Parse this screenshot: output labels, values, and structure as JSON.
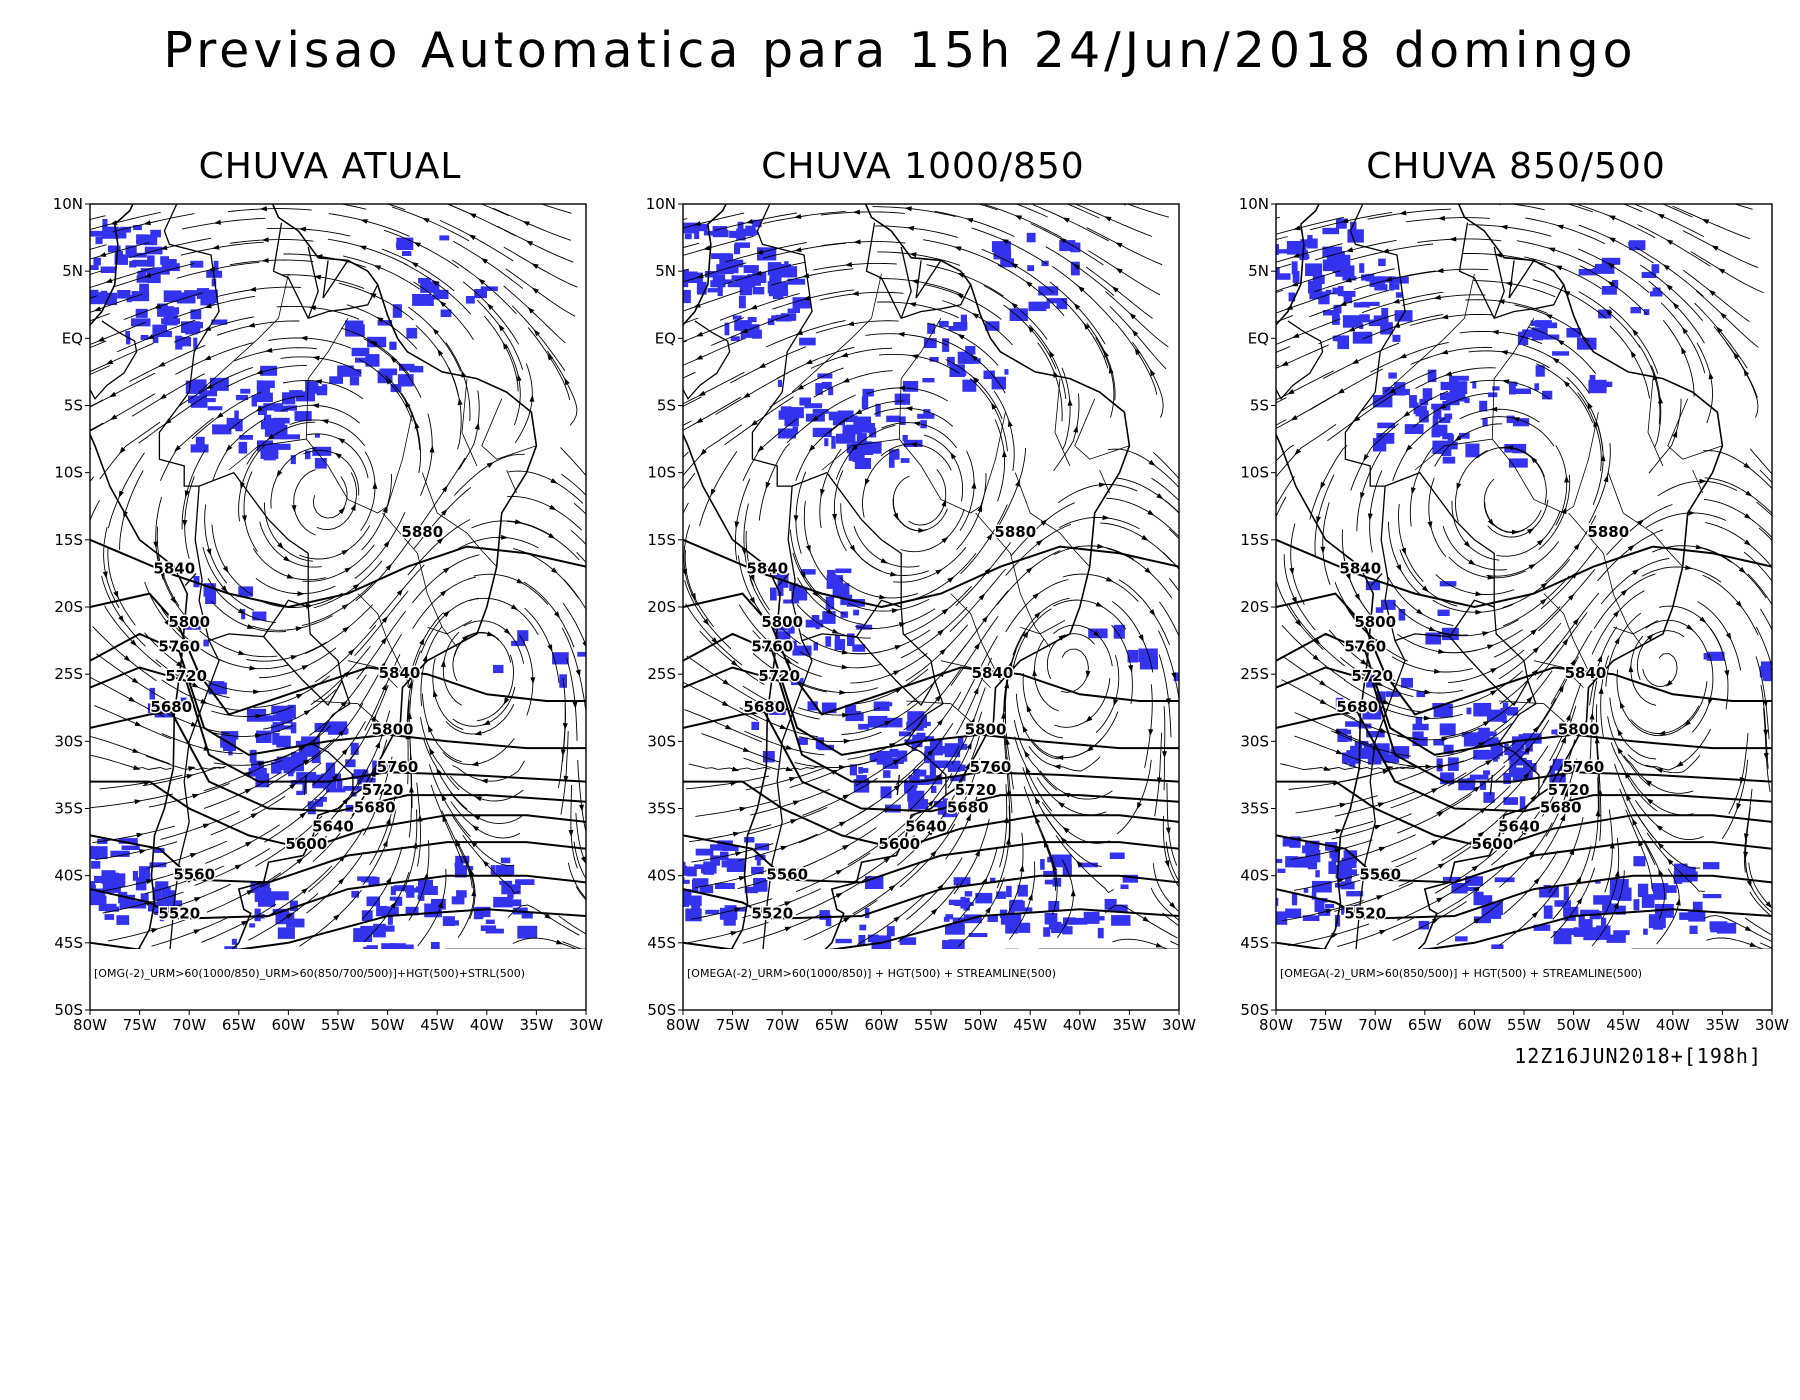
{
  "title": "Previsao Automatica para 15h 24/Jun/2018 domingo",
  "run_time": "12Z16JUN2018+[198h]",
  "colors": {
    "precip": "#3333ee",
    "lines": "#000000",
    "background": "#ffffff"
  },
  "axes": {
    "lat_labels": [
      "10N",
      "5N",
      "EQ",
      "5S",
      "10S",
      "15S",
      "20S",
      "25S",
      "30S",
      "35S",
      "40S",
      "45S",
      "50S"
    ],
    "lon_labels": [
      "80W",
      "75W",
      "70W",
      "65W",
      "60W",
      "55W",
      "50W",
      "45W",
      "40W",
      "35W",
      "30W"
    ]
  },
  "contour_labels": [
    {
      "text": "5880",
      "lon": -46.5,
      "lat": -14.8
    },
    {
      "text": "5840",
      "lon": -71.5,
      "lat": -17.5
    },
    {
      "text": "5800",
      "lon": -70,
      "lat": -21.5
    },
    {
      "text": "5760",
      "lon": -71,
      "lat": -23.3
    },
    {
      "text": "5720",
      "lon": -70.3,
      "lat": -25.5
    },
    {
      "text": "5680",
      "lon": -71.8,
      "lat": -27.8
    },
    {
      "text": "5840",
      "lon": -48.8,
      "lat": -25.3
    },
    {
      "text": "5800",
      "lon": -49.5,
      "lat": -29.5
    },
    {
      "text": "5760",
      "lon": -49,
      "lat": -32.3
    },
    {
      "text": "5720",
      "lon": -50.5,
      "lat": -34
    },
    {
      "text": "5680",
      "lon": -51.3,
      "lat": -35.3
    },
    {
      "text": "5640",
      "lon": -55.5,
      "lat": -36.7
    },
    {
      "text": "5600",
      "lon": -58.2,
      "lat": -38
    },
    {
      "text": "5560",
      "lon": -69.5,
      "lat": -40.3
    },
    {
      "text": "5520",
      "lon": -71,
      "lat": -43.2
    }
  ],
  "panels": [
    {
      "title": "CHUVA ATUAL",
      "caption": "[OMG(-2)_URM>60(1000/850)_URM>60(850/700/500)]+HGT(500)+STRL(500)",
      "seed": 11
    },
    {
      "title": "CHUVA 1000/850",
      "caption": "[OMEGA(-2)_URM>60(1000/850)] + HGT(500) + STREAMLINE(500)",
      "seed": 23
    },
    {
      "title": "CHUVA 850/500",
      "caption": "[OMEGA(-2)_URM>60(850/500)] + HGT(500) + STREAMLINE(500)",
      "seed": 37
    }
  ]
}
